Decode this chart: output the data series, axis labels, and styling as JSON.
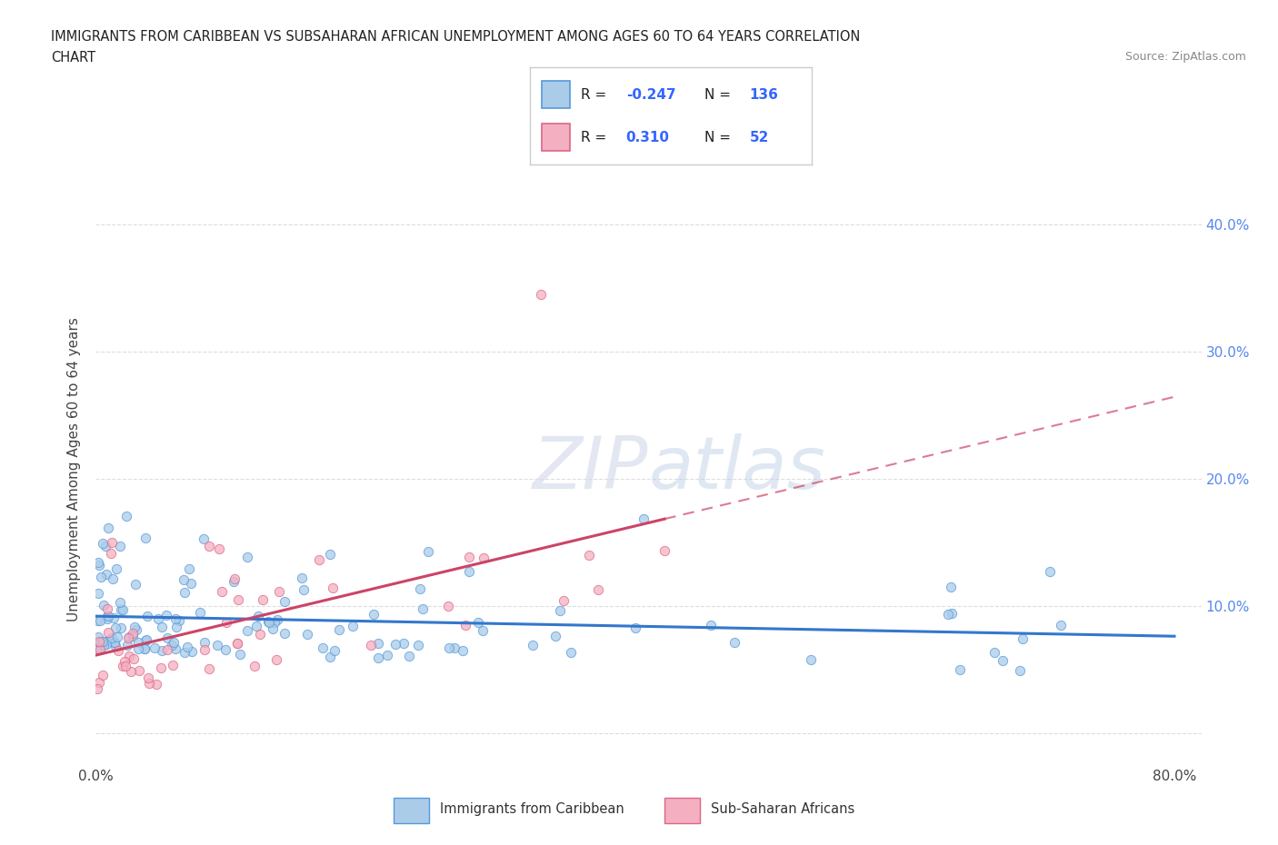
{
  "title_line1": "IMMIGRANTS FROM CARIBBEAN VS SUBSAHARAN AFRICAN UNEMPLOYMENT AMONG AGES 60 TO 64 YEARS CORRELATION",
  "title_line2": "CHART",
  "source_text": "Source: ZipAtlas.com",
  "ylabel": "Unemployment Among Ages 60 to 64 years",
  "xlim": [
    0.0,
    0.82
  ],
  "ylim": [
    -0.025,
    0.44
  ],
  "ytick_positions": [
    0.0,
    0.1,
    0.2,
    0.3,
    0.4
  ],
  "ytick_labels_right": [
    "",
    "10.0%",
    "20.0%",
    "30.0%",
    "40.0%"
  ],
  "xtick_positions": [
    0.0,
    0.1,
    0.2,
    0.3,
    0.4,
    0.5,
    0.6,
    0.7,
    0.8
  ],
  "xtick_labels": [
    "0.0%",
    "",
    "",
    "",
    "",
    "",
    "",
    "",
    "80.0%"
  ],
  "watermark": "ZIPatlas",
  "caribbean_color": "#aacce8",
  "caribbean_edge_color": "#5599dd",
  "caribbean_line_color": "#3377cc",
  "subsaharan_color": "#f4b0c0",
  "subsaharan_edge_color": "#dd6688",
  "subsaharan_line_color": "#cc4466",
  "grid_color": "#dddddd",
  "background_color": "#ffffff",
  "legend_R1": "-0.247",
  "legend_N1": "136",
  "legend_R2": "0.310",
  "legend_N2": "52",
  "legend_label1": "Immigrants from Caribbean",
  "legend_label2": "Sub-Saharan Africans"
}
